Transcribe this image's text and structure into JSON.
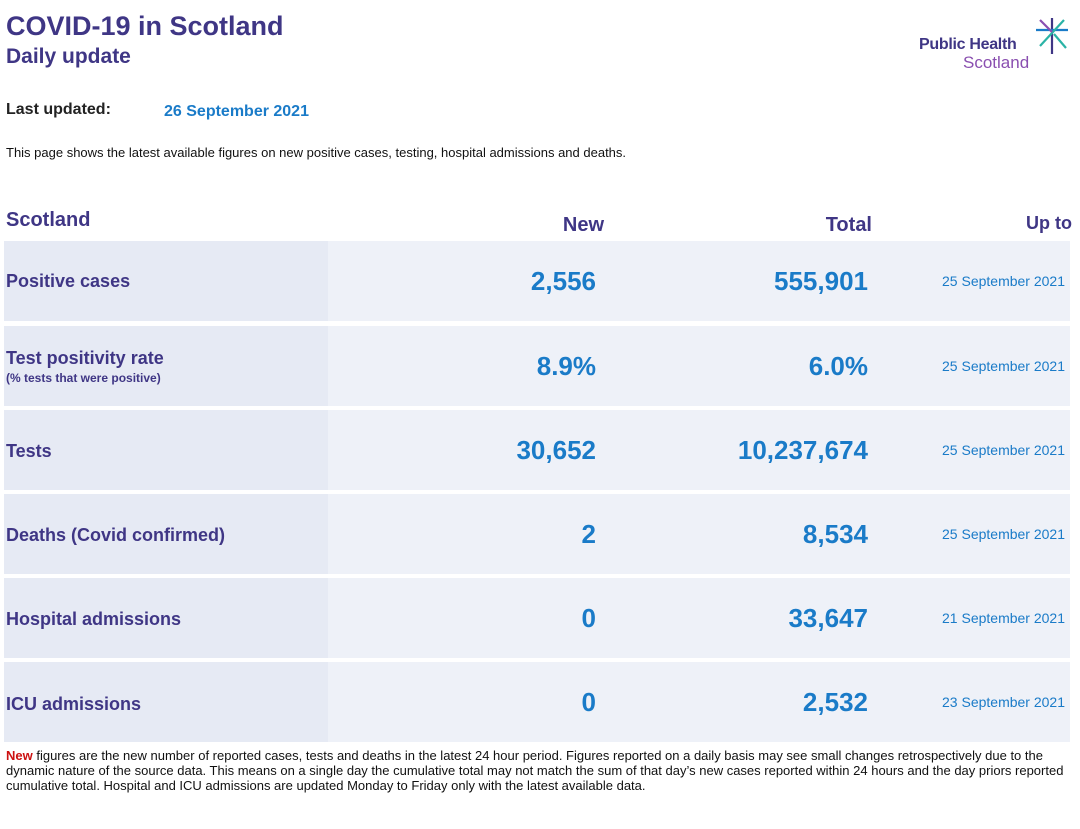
{
  "header": {
    "title": "COVID-19 in Scotland",
    "subtitle": "Daily update"
  },
  "logo": {
    "line1": "Public Health",
    "line2": "Scotland",
    "icon": "star-burst-icon",
    "colors": [
      "#3f3685",
      "#2ab3a6",
      "#8a4fb0",
      "#1a7bc8"
    ]
  },
  "last_updated": {
    "label": "Last updated:",
    "date": "26 September 2021"
  },
  "intro": "This page shows the latest available figures on new positive cases, testing, hospital admissions and deaths.",
  "table": {
    "headers": {
      "region": "Scotland",
      "new": "New",
      "total": "Total",
      "up_to": "Up to"
    },
    "rows": [
      {
        "label": "Positive cases",
        "sublabel": "",
        "new": "2,556",
        "total": "555,901",
        "up_to": "25 September 2021"
      },
      {
        "label": "Test positivity rate",
        "sublabel": "(% tests that were positive)",
        "new": "8.9%",
        "total": "6.0%",
        "up_to": "25 September 2021"
      },
      {
        "label": "Tests",
        "sublabel": "",
        "new": "30,652",
        "total": "10,237,674",
        "up_to": "25 September 2021"
      },
      {
        "label": "Deaths (Covid confirmed)",
        "sublabel": "",
        "new": "2",
        "total": "8,534",
        "up_to": "25 September 2021"
      },
      {
        "label": "Hospital admissions",
        "sublabel": "",
        "new": "0",
        "total": "33,647",
        "up_to": "21 September 2021"
      },
      {
        "label": "ICU admissions",
        "sublabel": "",
        "new": "0",
        "total": "2,532",
        "up_to": "23 September 2021"
      }
    ]
  },
  "footnote": {
    "highlight": "New",
    "text": " figures are the new number of reported cases, tests and deaths in the latest 24 hour period. Figures reported on a daily basis may see small changes retrospectively due to the dynamic nature of the source data. This means on a single day the cumulative total may not match the sum of that day’s new cases reported within 24 hours and the day priors reported cumulative total. Hospital and ICU admissions are updated Monday to Friday only with the latest available data."
  },
  "colors": {
    "brand_purple": "#3f3685",
    "value_blue": "#1a7bc8",
    "row_background": "#eef1f8",
    "label_background": "#e6eaf4",
    "highlight_red": "#cc1111"
  }
}
